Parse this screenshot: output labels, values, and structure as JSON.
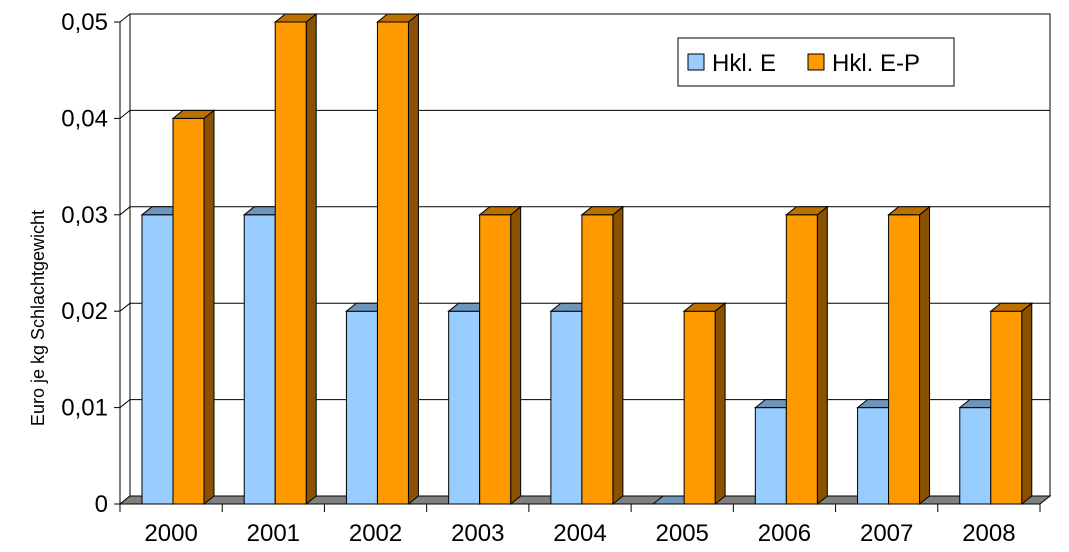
{
  "chart_data": {
    "type": "bar",
    "title": "",
    "xlabel": "",
    "ylabel": "Euro je kg Schlachtgewicht",
    "categories": [
      "2000",
      "2001",
      "2002",
      "2003",
      "2004",
      "2005",
      "2006",
      "2007",
      "2008"
    ],
    "series": [
      {
        "name": "Hkl. E",
        "values": [
          0.03,
          0.03,
          0.02,
          0.02,
          0.02,
          0,
          0.01,
          0.01,
          0.01
        ]
      },
      {
        "name": "Hkl. E-P",
        "values": [
          0.04,
          0.05,
          0.05,
          0.03,
          0.03,
          0.02,
          0.03,
          0.03,
          0.02
        ]
      }
    ],
    "ylim": [
      0,
      0.05
    ],
    "yticks": [
      "0",
      "0,01",
      "0,02",
      "0,03",
      "0,04",
      "0,05"
    ],
    "grid": true,
    "legend_position": "top-right",
    "colors": {
      "series": [
        "#99ccff",
        "#ff9900"
      ],
      "series_top": [
        "#6f95bb",
        "#bb7000"
      ],
      "series_side": [
        "#5a7a99",
        "#8a5200"
      ],
      "floor": "#808080",
      "grid": "#000000"
    }
  }
}
